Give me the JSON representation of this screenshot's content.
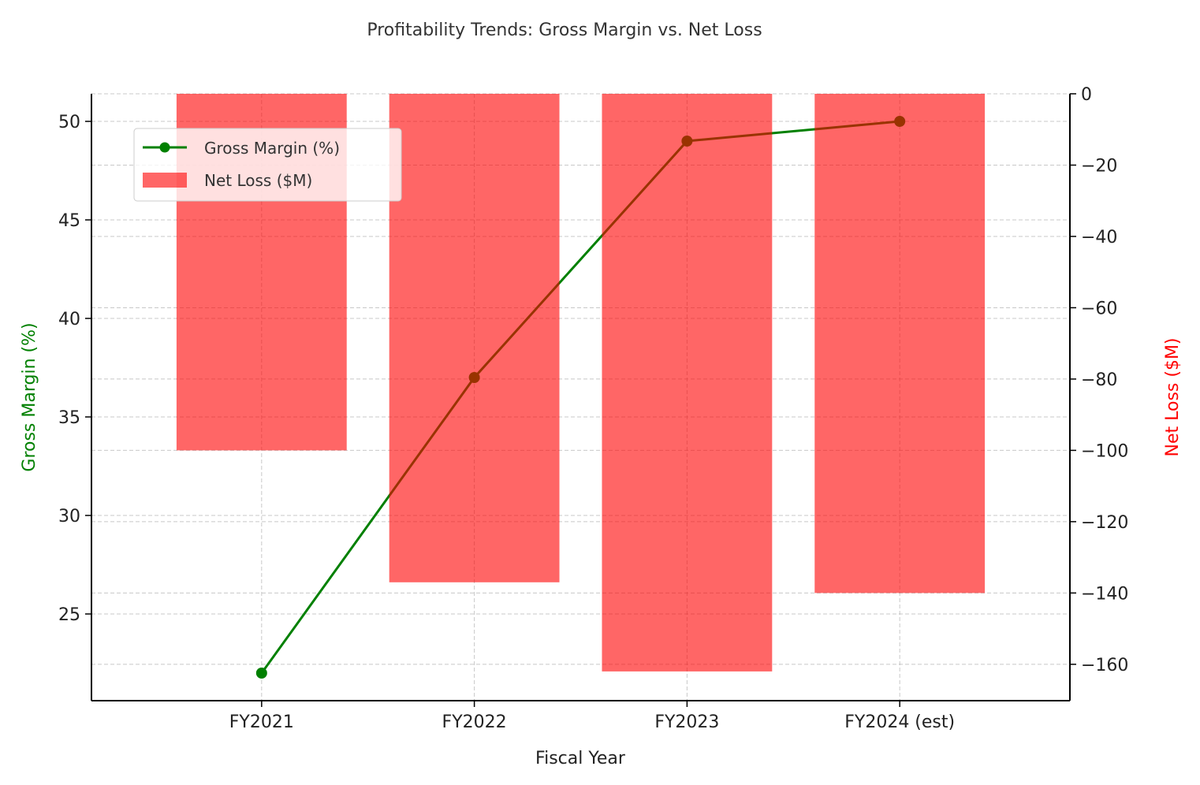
{
  "chart_data": {
    "type": "bar+line",
    "title": "Profitability Trends: Gross Margin vs. Net Loss",
    "xlabel": "Fiscal Year",
    "categories": [
      "FY2021",
      "FY2022",
      "FY2023",
      "FY2024 (est)"
    ],
    "series": [
      {
        "name": "Gross Margin (%)",
        "type": "line",
        "axis": "left",
        "values": [
          22,
          37,
          49,
          50
        ],
        "color": "#008000"
      },
      {
        "name": "Net Loss ($M)",
        "type": "bar",
        "axis": "right",
        "values": [
          -100,
          -137,
          -162,
          -140
        ],
        "color": "#ff0000",
        "alpha": 0.6
      }
    ],
    "left_axis": {
      "label": "Gross Margin (%)",
      "color": "#008000",
      "ylim": [
        20.6,
        51.4
      ],
      "ticks": [
        25,
        30,
        35,
        40,
        45,
        50
      ]
    },
    "right_axis": {
      "label": "Net Loss ($M)",
      "color": "#ff0000",
      "ylim": [
        -170.2,
        0
      ],
      "ticks": [
        0,
        -20,
        -40,
        -60,
        -80,
        -100,
        -120,
        -140,
        -160
      ]
    },
    "grid": true,
    "legend": "upper-left"
  }
}
